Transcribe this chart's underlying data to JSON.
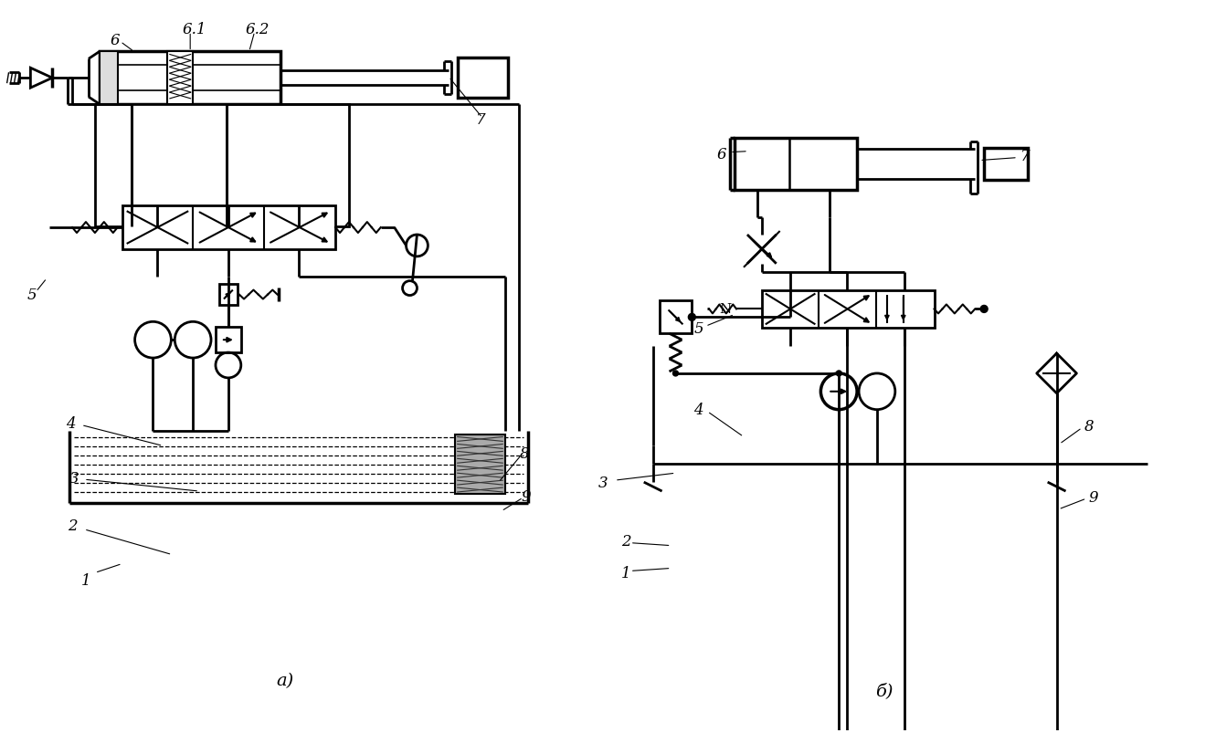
{
  "bg_color": "#ffffff",
  "line_color": "#000000",
  "label_a": "а)",
  "label_b": "б)"
}
